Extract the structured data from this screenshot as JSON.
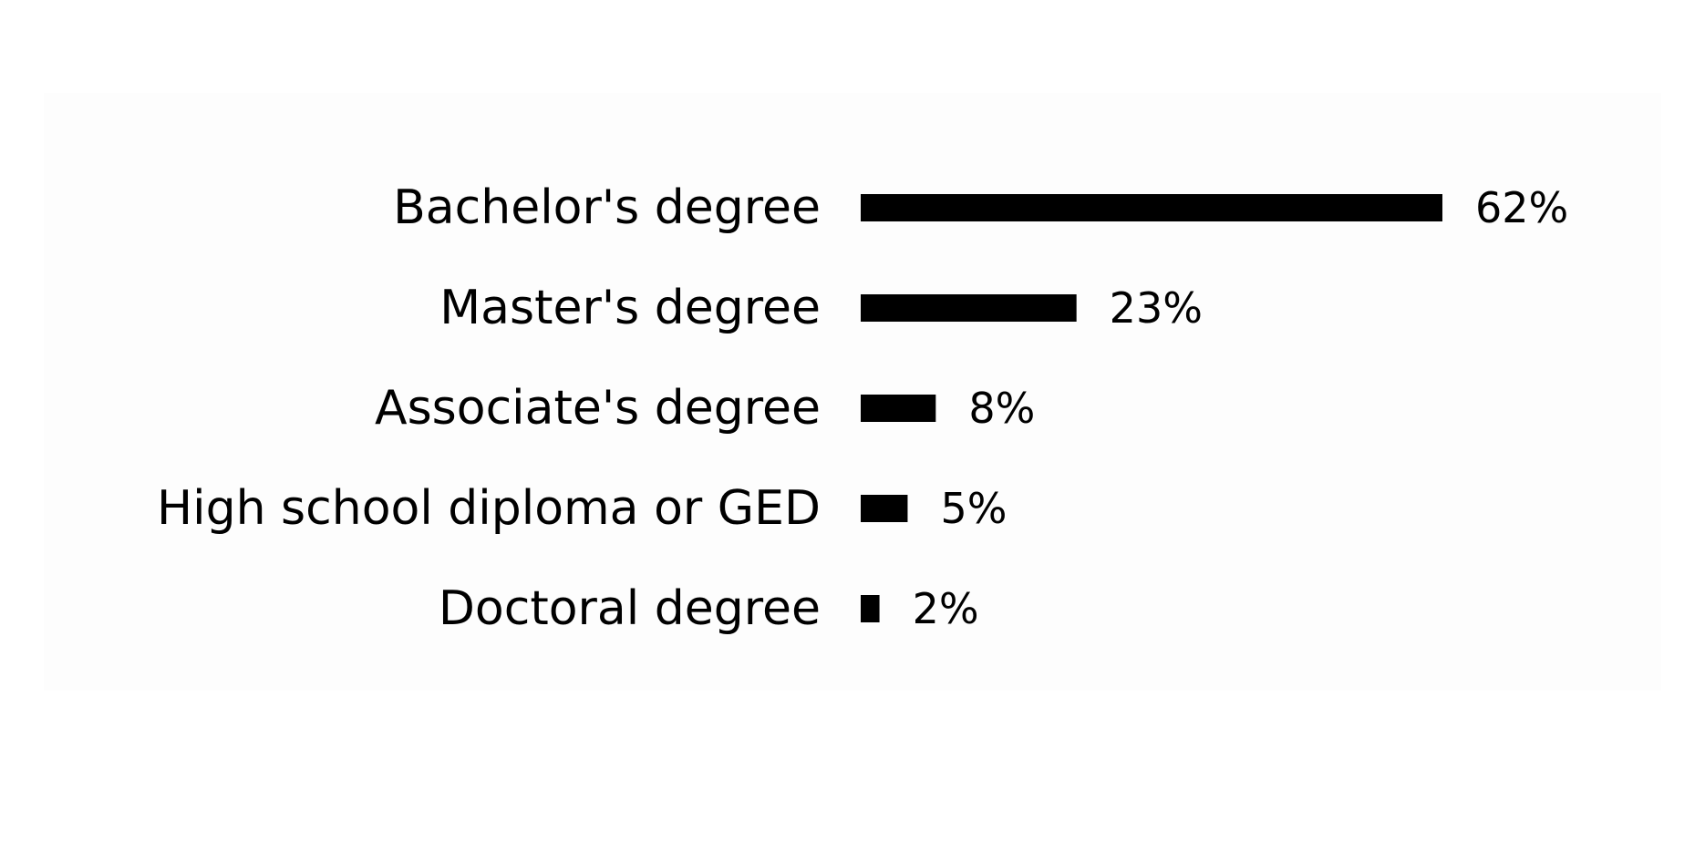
{
  "chart_data": {
    "type": "bar",
    "orientation": "horizontal",
    "categories": [
      "Bachelor's degree",
      "Master's degree",
      "Associate's degree",
      "High school diploma or GED",
      "Doctoral degree"
    ],
    "values": [
      62,
      23,
      8,
      5,
      2
    ],
    "value_labels": [
      "62%",
      "23%",
      "8%",
      "5%",
      "2%"
    ],
    "unit": "%",
    "xlim": [
      0,
      62
    ],
    "grid": false,
    "legend": "none",
    "bar_color": "#000000"
  }
}
